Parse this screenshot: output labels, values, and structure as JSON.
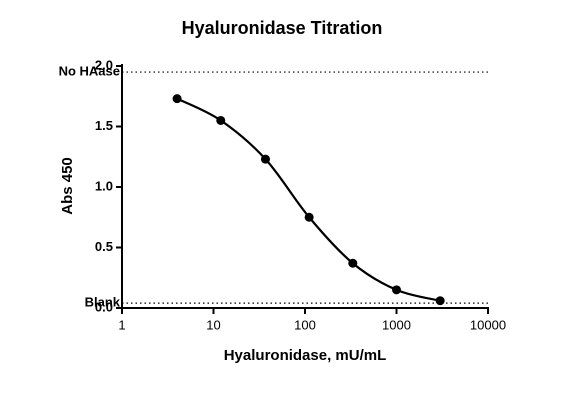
{
  "chart_data": {
    "type": "line",
    "title": "Hyaluronidase Titration",
    "x_label": "Hyaluronidase, mU/mL",
    "y_label": "Abs 450",
    "x": [
      4,
      12,
      37,
      111,
      333,
      1000,
      3000
    ],
    "series": [
      {
        "color": "#000000",
        "values": [
          1.73,
          1.55,
          1.23,
          0.75,
          0.37,
          0.15,
          0.06
        ]
      }
    ],
    "smooth": true,
    "markers": true,
    "x_log": true,
    "xlim": [
      1,
      10000
    ],
    "xticks": [
      1,
      10,
      100,
      1000,
      10000
    ],
    "ylim": [
      0,
      2
    ],
    "yticks": [
      {
        "value": 0,
        "label": "0.0"
      },
      0.5,
      {
        "value": 1,
        "label": "1.0"
      },
      1.5,
      {
        "value": 2,
        "label": "2.0"
      }
    ],
    "reference_lines": [
      {
        "label": "No HAase",
        "value": 1.95
      },
      {
        "label": "Blank",
        "value": 0.04
      }
    ]
  }
}
